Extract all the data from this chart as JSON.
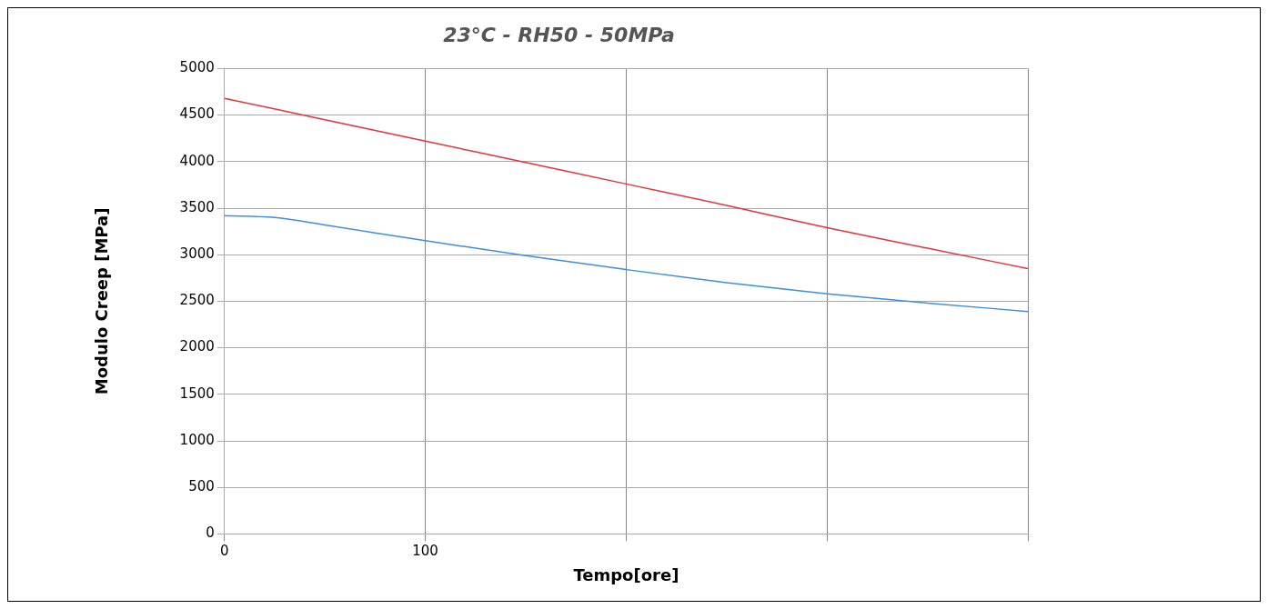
{
  "chart_data": {
    "type": "line",
    "title": "23°C - RH50 - 50MPa",
    "xlabel": "Tempo[ore]",
    "ylabel": "Modulo Creep [MPa]",
    "x": [
      0,
      50,
      100,
      150,
      200,
      250,
      300,
      350,
      400
    ],
    "series": [
      {
        "color": "#e8323c",
        "values": [
          4680,
          4450,
          4220,
          3990,
          3760,
          3530,
          3290,
          3070,
          2850
        ]
      },
      {
        "color": "#3a8ee6",
        "x": [
          0,
          25,
          50,
          100,
          150,
          200,
          250,
          300,
          350,
          400
        ],
        "values": [
          3420,
          3400,
          3320,
          3150,
          2990,
          2840,
          2700,
          2580,
          2480,
          2390
        ]
      }
    ],
    "xlim": [
      0,
      400
    ],
    "xticks": [
      0,
      100,
      {
        "value": 200,
        "label": null
      },
      {
        "value": 300,
        "label": null
      },
      {
        "value": 400,
        "label": null
      }
    ],
    "ylim": [
      0,
      5000
    ],
    "yticks": [
      0,
      500,
      1000,
      1500,
      2000,
      2500,
      3000,
      3500,
      4000,
      4500,
      5000
    ],
    "grid": true,
    "legend": false,
    "marker": "none",
    "line_style": "solid"
  }
}
